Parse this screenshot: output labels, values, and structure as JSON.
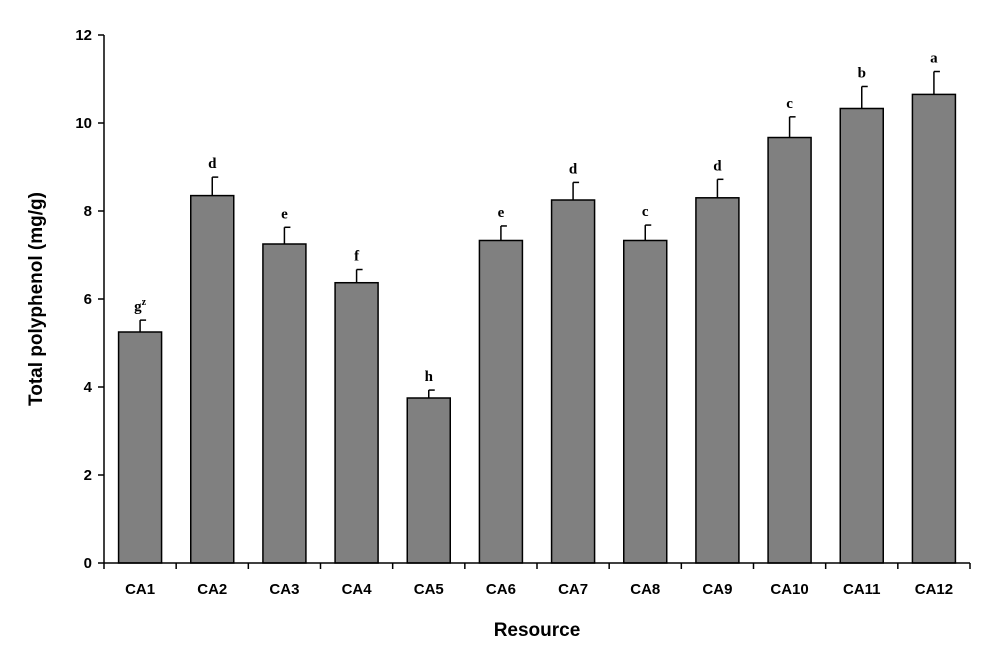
{
  "chart_data": {
    "type": "bar",
    "title": "",
    "xlabel": "Resource",
    "ylabel": "Total polyphenol (mg/g)",
    "ylim": [
      0,
      12
    ],
    "yticks": [
      0,
      2,
      4,
      6,
      8,
      10,
      12
    ],
    "grid": false,
    "categories": [
      "CA1",
      "CA2",
      "CA3",
      "CA4",
      "CA5",
      "CA6",
      "CA7",
      "CA8",
      "CA9",
      "CA10",
      "CA11",
      "CA12"
    ],
    "values": [
      5.25,
      8.35,
      7.25,
      6.37,
      3.75,
      7.33,
      8.25,
      7.33,
      8.3,
      9.67,
      10.33,
      10.65
    ],
    "errors": [
      0.27,
      0.42,
      0.38,
      0.3,
      0.18,
      0.33,
      0.4,
      0.35,
      0.42,
      0.47,
      0.5,
      0.52
    ],
    "letters": [
      "g",
      "d",
      "e",
      "f",
      "h",
      "e",
      "d",
      "c",
      "d",
      "c",
      "b",
      "a"
    ],
    "first_letter_superscript": "z",
    "bar_color": "#808080",
    "edge_color": "#000000"
  }
}
